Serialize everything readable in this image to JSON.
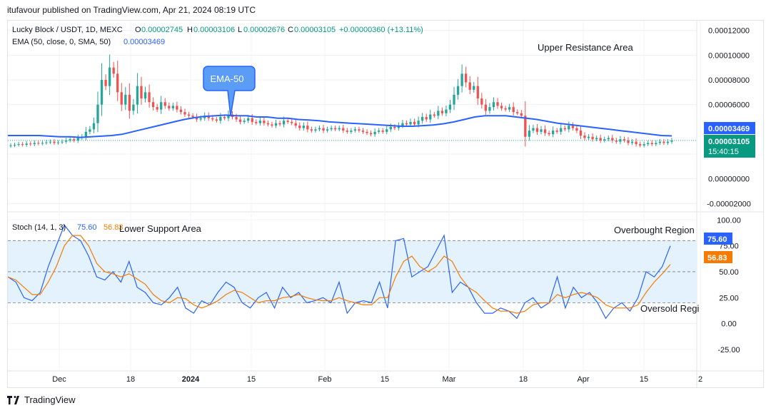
{
  "header": {
    "publisher": "itufavour published on TradingView.com, Apr 21, 2024 08:19 UTC"
  },
  "legend": {
    "symbol": "Lucky Block / USDT, 1D, MEXC",
    "o_label": "O",
    "o": "0.00002745",
    "h_label": "H",
    "h": "0.00003106",
    "l_label": "L",
    "l": "0.00002676",
    "c_label": "C",
    "c": "0.00003105",
    "change": "+0.00000360 (+13.11%)",
    "ema_label": "EMA (50, close, 0, SMA, 50)",
    "ema_value": "0.00003469",
    "stoch_label": "Stoch (14, 1, 3)",
    "stoch_k": "75.60",
    "stoch_d": "56.83"
  },
  "annotations": {
    "ema_callout": "EMA-50",
    "upper_resistance": "Upper Resistance Area",
    "lower_support": "Lower Support Area",
    "overbought": "Overbought Region",
    "oversold": "Oversold Regi"
  },
  "price_tags": {
    "ema": "0.00003469",
    "last": "0.00003105",
    "countdown": "15:40:15",
    "stoch_k": "75.60",
    "stoch_d": "56.83"
  },
  "colors": {
    "up": "#26a69a",
    "down": "#ef5350",
    "ema": "#2962ff",
    "stoch_k": "#2962ff",
    "stoch_d": "#f57c00",
    "band": "#e3f2fd"
  },
  "footer": {
    "brand": "TradingView"
  },
  "chart_data": [
    {
      "type": "candlestick",
      "title": "Lucky Block / USDT, 1D, MEXC",
      "x_ticks": [
        "Dec",
        "18",
        "2024",
        "15",
        "Feb",
        "15",
        "Mar",
        "18",
        "Apr",
        "15",
        "2"
      ],
      "y_ticks": [
        "0.00012000",
        "0.00010000",
        "0.00008000",
        "0.00006000",
        "0.00002000",
        "0.00000000",
        "-0.00002000"
      ],
      "ylim": [
        -2.5e-05,
        0.000125
      ],
      "note_ohlc_last": {
        "open": 2.745e-05,
        "high": 3.106e-05,
        "low": 2.676e-05,
        "close": 3.105e-05
      },
      "close": [
        2.7,
        2.75,
        2.8,
        2.75,
        2.85,
        2.8,
        2.9,
        2.85,
        2.9,
        2.95,
        3.0,
        2.9,
        2.95,
        3.0,
        3.1,
        3.2,
        3.1,
        3.3,
        3.4,
        3.8,
        4.0,
        4.5,
        6.0,
        8.0,
        7.5,
        9.0,
        8.5,
        7.0,
        6.0,
        6.8,
        5.5,
        6.0,
        7.5,
        6.5,
        7.0,
        6.2,
        5.8,
        5.6,
        6.2,
        5.9,
        5.7,
        5.9,
        5.6,
        5.4,
        5.2,
        5.1,
        5.0,
        4.8,
        4.9,
        5.1,
        4.9,
        4.8,
        4.7,
        5.0,
        4.9,
        5.2,
        5.0,
        4.8,
        4.6,
        4.7,
        4.9,
        4.6,
        4.5,
        4.7,
        4.5,
        4.4,
        4.3,
        4.5,
        4.4,
        4.7,
        4.6,
        4.5,
        4.3,
        4.1,
        4.3,
        4.0,
        3.9,
        4.0,
        4.1,
        3.9,
        4.0,
        4.1,
        4.0,
        4.1,
        3.9,
        3.8,
        3.9,
        4.0,
        3.9,
        3.8,
        3.7,
        3.6,
        3.8,
        3.9,
        3.8,
        4.0,
        4.2,
        4.1,
        4.3,
        4.5,
        4.4,
        4.6,
        4.4,
        4.7,
        5.0,
        4.8,
        5.2,
        5.1,
        5.5,
        5.3,
        5.6,
        6.0,
        6.8,
        7.5,
        8.5,
        7.8,
        7.2,
        7.5,
        6.5,
        6.0,
        5.5,
        5.8,
        6.2,
        5.9,
        5.7,
        5.6,
        5.8,
        5.4,
        5.3,
        5.1,
        3.4,
        3.9,
        4.1,
        3.8,
        4.0,
        3.7,
        3.6,
        3.9,
        3.8,
        4.1,
        4.0,
        4.3,
        4.1,
        3.9,
        3.5,
        3.3,
        3.4,
        3.2,
        3.3,
        3.1,
        3.2,
        3.3,
        3.1,
        3.0,
        3.2,
        3.1,
        2.9,
        3.0,
        2.8,
        2.7,
        2.8,
        2.9,
        2.8,
        2.9,
        3.0,
        2.9,
        3.0,
        3.1
      ],
      "close_units": "×1e-5 USDT",
      "series": [
        {
          "name": "EMA (50, close, 0, SMA, 50)",
          "values": [
            3.5,
            3.5,
            3.5,
            3.5,
            3.45,
            3.4,
            3.4,
            3.35,
            3.4,
            3.45,
            3.5,
            3.6,
            3.8,
            4.0,
            4.2,
            4.4,
            4.6,
            4.8,
            4.95,
            5.05,
            5.1,
            5.15,
            5.1,
            5.1,
            5.0,
            5.0,
            4.9,
            4.9,
            4.8,
            4.75,
            4.7,
            4.6,
            4.55,
            4.5,
            4.45,
            4.4,
            4.35,
            4.3,
            4.25,
            4.25,
            4.3,
            4.35,
            4.45,
            4.6,
            4.8,
            5.0,
            5.1,
            5.1,
            5.1,
            5.0,
            4.9,
            4.8,
            4.65,
            4.5,
            4.4,
            4.3,
            4.2,
            4.1,
            4.0,
            3.9,
            3.8,
            3.7,
            3.6,
            3.5,
            3.47
          ]
        }
      ]
    },
    {
      "type": "line",
      "title": "Stoch (14, 1, 3)",
      "y_ticks": [
        "100.00",
        "75.00",
        "50.00",
        "25.00",
        "0.00",
        "-25.00"
      ],
      "ylim": [
        -45,
        105
      ],
      "bands": {
        "upper": 80,
        "lower": 20
      },
      "series": [
        {
          "name": "%K",
          "values": [
            45,
            40,
            25,
            22,
            30,
            55,
            75,
            95,
            85,
            80,
            65,
            45,
            42,
            50,
            40,
            60,
            35,
            30,
            20,
            18,
            25,
            35,
            15,
            10,
            22,
            18,
            30,
            40,
            35,
            20,
            15,
            25,
            30,
            15,
            35,
            25,
            30,
            20,
            22,
            25,
            20,
            40,
            10,
            20,
            22,
            20,
            40,
            15,
            80,
            82,
            45,
            50,
            55,
            70,
            85,
            30,
            40,
            35,
            20,
            10,
            10,
            15,
            12,
            5,
            20,
            25,
            15,
            20,
            45,
            15,
            35,
            25,
            30,
            20,
            5,
            15,
            20,
            12,
            25,
            50,
            45,
            55,
            75
          ]
        },
        {
          "name": "%D",
          "values": [
            45,
            42,
            35,
            28,
            28,
            40,
            55,
            75,
            85,
            85,
            75,
            58,
            50,
            48,
            45,
            48,
            43,
            38,
            28,
            22,
            20,
            25,
            24,
            18,
            15,
            18,
            22,
            28,
            32,
            30,
            25,
            20,
            22,
            22,
            25,
            26,
            28,
            25,
            23,
            22,
            22,
            25,
            22,
            20,
            18,
            18,
            25,
            25,
            45,
            60,
            65,
            55,
            50,
            55,
            65,
            60,
            45,
            35,
            30,
            22,
            15,
            12,
            12,
            10,
            12,
            18,
            20,
            20,
            28,
            25,
            28,
            30,
            28,
            25,
            18,
            15,
            15,
            15,
            18,
            30,
            40,
            48,
            57
          ]
        }
      ]
    }
  ]
}
